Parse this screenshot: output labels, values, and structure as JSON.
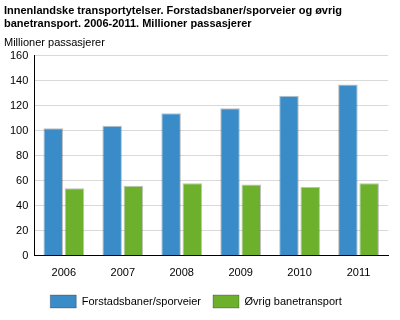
{
  "chart_data": {
    "type": "bar",
    "title": [
      "Innenlandske transportytelser. Forstadsbaner/sporveier og øvrig",
      "banetransport. 2006-2011. Millioner passasjerer"
    ],
    "ylabel": "Millioner passasjerer",
    "categories": [
      "2006",
      "2007",
      "2008",
      "2009",
      "2010",
      "2011"
    ],
    "series": [
      {
        "name": "Forstadsbaner/sporveier",
        "color": "#3a8cc8",
        "values": [
          102,
          104,
          114,
          118,
          128,
          137
        ]
      },
      {
        "name": "Øvrig banetransport",
        "color": "#6cb02c",
        "values": [
          54,
          56,
          58,
          57,
          55,
          58
        ]
      }
    ],
    "ylim": [
      0,
      160
    ],
    "yticks": [
      0,
      20,
      40,
      60,
      80,
      100,
      120,
      140,
      160
    ],
    "grid": true,
    "legend": "bottom"
  }
}
